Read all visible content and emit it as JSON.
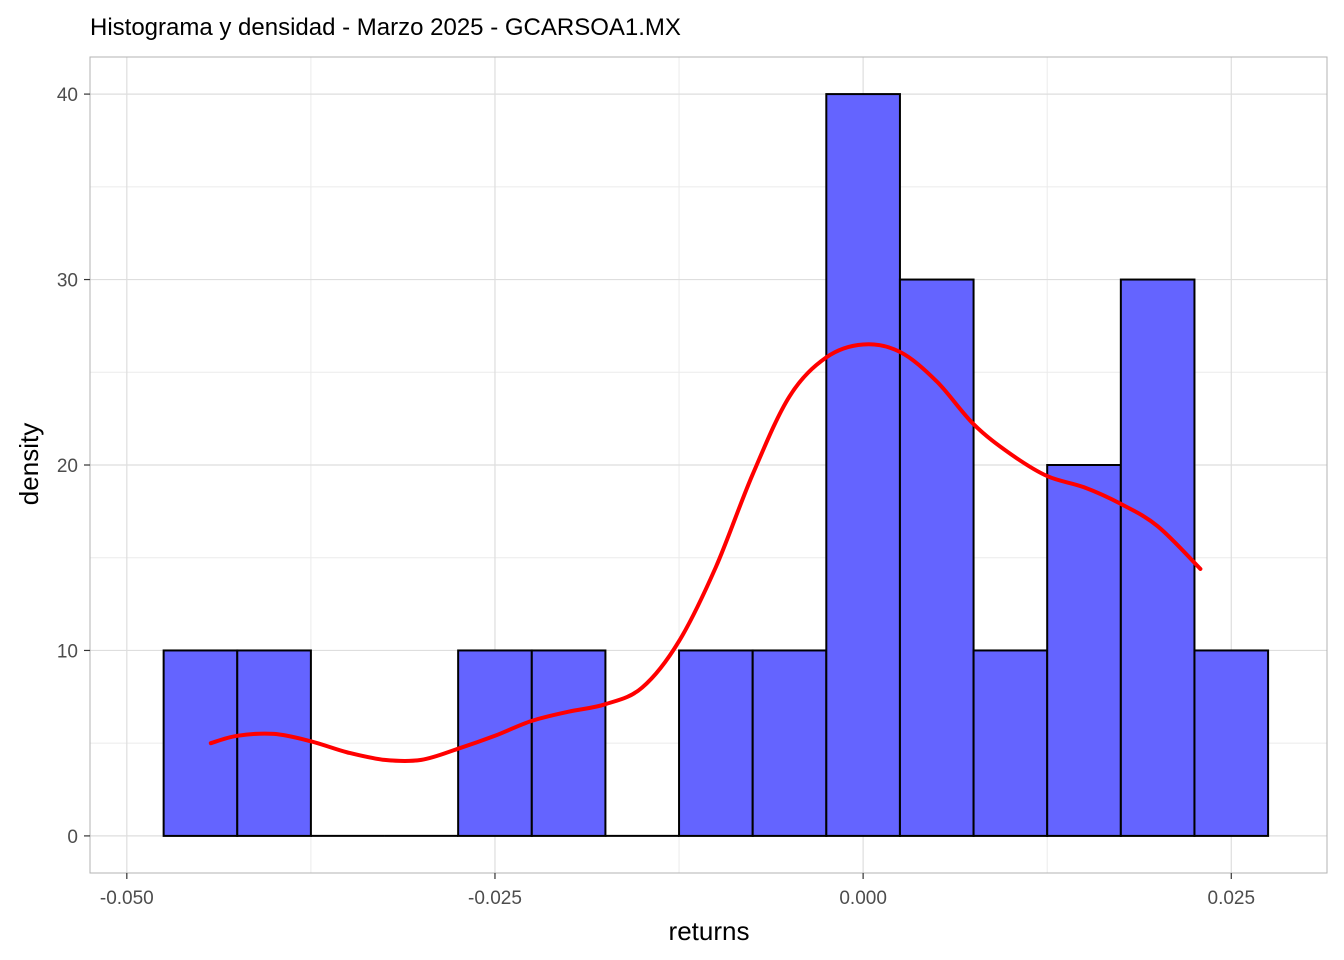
{
  "chart_data": {
    "type": "bar",
    "title": "Histograma y densidad - Marzo 2025 - GCARSOA1.MX",
    "xlabel": "returns",
    "ylabel": "density",
    "xlim": [
      -0.0525,
      0.0315
    ],
    "ylim": [
      -2,
      42
    ],
    "x_ticks": [
      -0.05,
      -0.025,
      0.0,
      0.025
    ],
    "x_tick_labels": [
      "-0.050",
      "-0.025",
      "0.000",
      "0.025"
    ],
    "y_ticks": [
      0,
      10,
      20,
      30,
      40
    ],
    "y_tick_labels": [
      "0",
      "10",
      "20",
      "30",
      "40"
    ],
    "grid": true,
    "histogram": {
      "bin_width": 0.005,
      "fill_color": "#6464ff",
      "edge_color": "#000000",
      "bins": [
        {
          "x0": -0.0475,
          "x1": -0.0425,
          "density": 10
        },
        {
          "x0": -0.0425,
          "x1": -0.0375,
          "density": 10
        },
        {
          "x0": -0.0375,
          "x1": -0.0325,
          "density": 0
        },
        {
          "x0": -0.0325,
          "x1": -0.0275,
          "density": 0
        },
        {
          "x0": -0.0275,
          "x1": -0.0225,
          "density": 10
        },
        {
          "x0": -0.0225,
          "x1": -0.0175,
          "density": 10
        },
        {
          "x0": -0.0175,
          "x1": -0.0125,
          "density": 0
        },
        {
          "x0": -0.0125,
          "x1": -0.0075,
          "density": 10
        },
        {
          "x0": -0.0075,
          "x1": -0.0025,
          "density": 10
        },
        {
          "x0": -0.0025,
          "x1": 0.0025,
          "density": 40
        },
        {
          "x0": 0.0025,
          "x1": 0.0075,
          "density": 30
        },
        {
          "x0": 0.0075,
          "x1": 0.0125,
          "density": 10
        },
        {
          "x0": 0.0125,
          "x1": 0.0175,
          "density": 20
        },
        {
          "x0": 0.0175,
          "x1": 0.0225,
          "density": 30
        },
        {
          "x0": 0.0225,
          "x1": 0.0275,
          "density": 10
        }
      ]
    },
    "density_curve": {
      "color": "#ff0000",
      "x": [
        -0.0443,
        -0.0425,
        -0.04,
        -0.0375,
        -0.035,
        -0.0325,
        -0.03,
        -0.0275,
        -0.025,
        -0.0225,
        -0.02,
        -0.0175,
        -0.015,
        -0.0125,
        -0.01,
        -0.0075,
        -0.005,
        -0.0025,
        0.0,
        0.0025,
        0.005,
        0.0075,
        0.01,
        0.0125,
        0.015,
        0.0175,
        0.02,
        0.0229
      ],
      "y": [
        5.0,
        5.4,
        5.5,
        5.1,
        4.5,
        4.1,
        4.1,
        4.7,
        5.4,
        6.2,
        6.7,
        7.1,
        8.0,
        10.5,
        14.5,
        19.5,
        23.7,
        25.8,
        26.5,
        26.1,
        24.5,
        22.2,
        20.6,
        19.4,
        18.8,
        17.9,
        16.7,
        14.4
      ]
    }
  }
}
